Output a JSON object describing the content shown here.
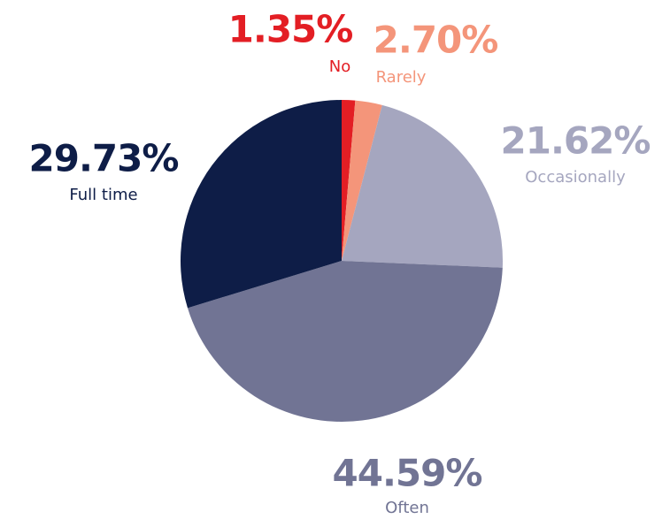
{
  "chart_data": {
    "type": "pie",
    "categories": [
      "No",
      "Rarely",
      "Occasionally",
      "Often",
      "Full time"
    ],
    "values": [
      1.35,
      2.7,
      21.62,
      44.59,
      29.73
    ],
    "value_labels": [
      "1.35%",
      "2.70%",
      "21.62%",
      "44.59%",
      "29.73%"
    ],
    "colors": [
      "#e31e24",
      "#f4957a",
      "#a5a6bf",
      "#717494",
      "#0e1d47"
    ]
  }
}
